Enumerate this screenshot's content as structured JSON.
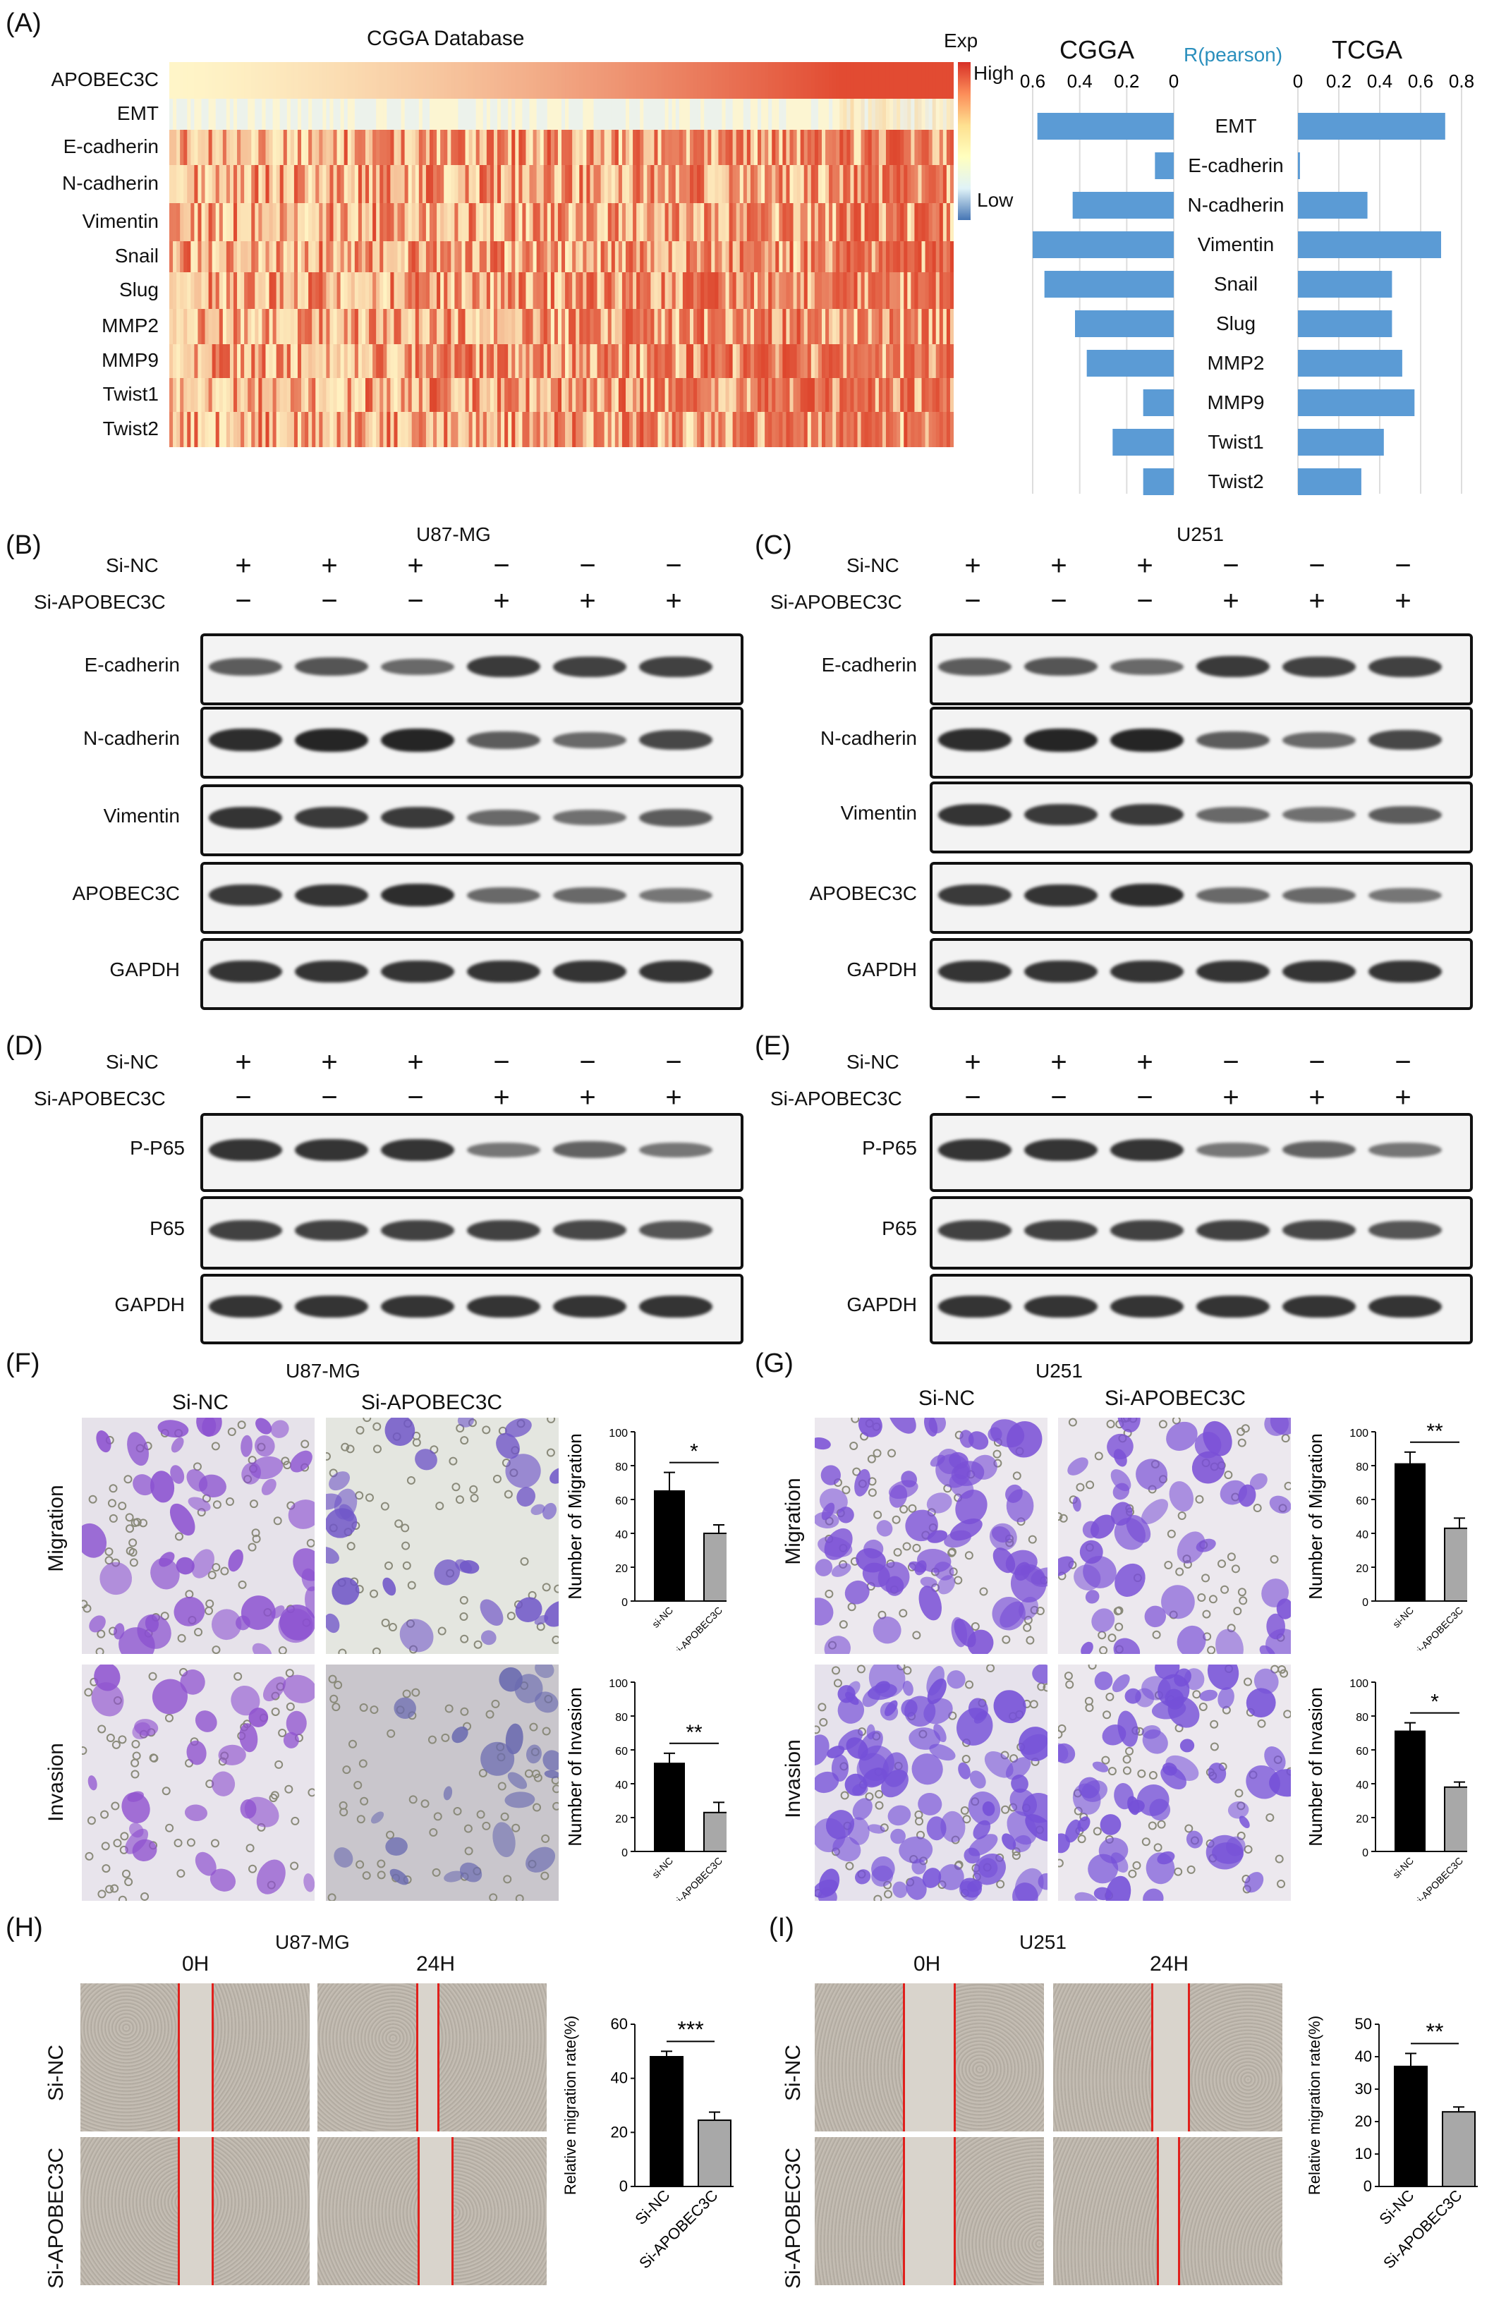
{
  "panels": {
    "A": "(A)",
    "B": "(B)",
    "C": "(C)",
    "D": "(D)",
    "E": "(E)",
    "F": "(F)",
    "G": "(G)",
    "H": "(H)",
    "I": "(I)"
  },
  "heatmap": {
    "title": "CGGA Database",
    "legend_title": "Exp",
    "legend_high": "High",
    "legend_low": "Low",
    "rows": [
      "APOBEC3C",
      "EMT",
      "E-cadherin",
      "N-cadherin",
      "Vimentin",
      "Snail",
      "Slug",
      "MMP2",
      "MMP9",
      "Twist1",
      "Twist2"
    ]
  },
  "correlation": {
    "left_title": "CGGA",
    "mid_title": "R(pearson)",
    "right_title": "TCGA",
    "left_ticks": [
      "0.6",
      "0.4",
      "0.2",
      "0"
    ],
    "right_ticks": [
      "0",
      "0.2",
      "0.4",
      "0.6",
      "0.8"
    ],
    "bar_color": "#5b9bd5"
  },
  "chart_data": [
    {
      "type": "bar",
      "title": "CGGA",
      "xlabel": "R(pearson)",
      "categories": [
        "EMT",
        "E-cadherin",
        "N-cadherin",
        "Vimentin",
        "Snail",
        "Slug",
        "MMP2",
        "MMP9",
        "Twist1",
        "Twist2"
      ],
      "values": [
        0.58,
        0.08,
        0.43,
        0.6,
        0.55,
        0.42,
        0.37,
        0.13,
        0.26,
        0.13
      ],
      "xlim": [
        0,
        0.6
      ]
    },
    {
      "type": "bar",
      "title": "TCGA",
      "xlabel": "R(pearson)",
      "categories": [
        "EMT",
        "E-cadherin",
        "N-cadherin",
        "Vimentin",
        "Snail",
        "Slug",
        "MMP2",
        "MMP9",
        "Twist1",
        "Twist2"
      ],
      "values": [
        0.72,
        0.01,
        0.34,
        0.7,
        0.46,
        0.46,
        0.51,
        0.57,
        0.42,
        0.31
      ],
      "xlim": [
        0,
        0.8
      ]
    },
    {
      "type": "bar",
      "panel": "F",
      "categories": [
        "si-NC",
        "si-APOBEC3C"
      ],
      "values": [
        65,
        40
      ],
      "errors": [
        11,
        5
      ],
      "ylabel": "Number of Migration",
      "ylim": [
        0,
        100
      ],
      "yticks": [
        "0",
        "20",
        "40",
        "60",
        "80",
        "100"
      ],
      "sig": "*"
    },
    {
      "type": "bar",
      "panel": "F",
      "categories": [
        "si-NC",
        "si-APOBEC3C"
      ],
      "values": [
        52,
        23
      ],
      "errors": [
        6,
        6
      ],
      "ylabel": "Number of Invasion",
      "ylim": [
        0,
        100
      ],
      "yticks": [
        "0",
        "20",
        "40",
        "60",
        "80",
        "100"
      ],
      "sig": "**"
    },
    {
      "type": "bar",
      "panel": "G",
      "categories": [
        "si-NC",
        "si-APOBEC3C"
      ],
      "values": [
        81,
        43
      ],
      "errors": [
        7,
        6
      ],
      "ylabel": "Number of Migration",
      "ylim": [
        0,
        100
      ],
      "yticks": [
        "0",
        "20",
        "40",
        "60",
        "80",
        "100"
      ],
      "sig": "**"
    },
    {
      "type": "bar",
      "panel": "G",
      "categories": [
        "si-NC",
        "si-APOBEC3C"
      ],
      "values": [
        71,
        38
      ],
      "errors": [
        5,
        3
      ],
      "ylabel": "Number of Invasion",
      "ylim": [
        0,
        100
      ],
      "yticks": [
        "0",
        "20",
        "40",
        "60",
        "80",
        "100"
      ],
      "sig": "*"
    },
    {
      "type": "bar",
      "panel": "H",
      "categories": [
        "Si-NC",
        "Si-APOBEC3C"
      ],
      "values": [
        48,
        24.5
      ],
      "errors": [
        2,
        3
      ],
      "ylabel": "Relative migration rate(%)",
      "ylim": [
        0,
        60
      ],
      "yticks": [
        "0",
        "20",
        "40",
        "60"
      ],
      "sig": "***"
    },
    {
      "type": "bar",
      "panel": "I",
      "categories": [
        "Si-NC",
        "Si-APOBEC3C"
      ],
      "values": [
        37,
        23
      ],
      "errors": [
        4,
        1.5
      ],
      "ylabel": "Relative migration rate(%)",
      "ylim": [
        0,
        50
      ],
      "yticks": [
        "0",
        "10",
        "20",
        "30",
        "40",
        "50"
      ],
      "sig": "**"
    }
  ],
  "westerns": {
    "siNC": "Si-NC",
    "siA3C": "Si-APOBEC3C",
    "plus": "+",
    "minus": "−",
    "B": {
      "cell": "U87-MG",
      "rows": [
        "E-cadherin",
        "N-cadherin",
        "Vimentin",
        "APOBEC3C",
        "GAPDH"
      ]
    },
    "C": {
      "cell": "U251",
      "rows": [
        "E-cadherin",
        "N-cadherin",
        "Vimentin",
        "APOBEC3C",
        "GAPDH"
      ]
    },
    "D": {
      "rows": [
        "P-P65",
        "P65",
        "GAPDH"
      ]
    },
    "E": {
      "rows": [
        "P-P65",
        "P65",
        "GAPDH"
      ]
    }
  },
  "transwell": {
    "F": {
      "cell": "U87-MG",
      "col1": "Si-NC",
      "col2": "Si-APOBEC3C",
      "row1": "Migration",
      "row2": "Invasion"
    },
    "G": {
      "cell": "U251",
      "col1": "Si-NC",
      "col2": "Si-APOBEC3C",
      "row1": "Migration",
      "row2": "Invasion"
    }
  },
  "scratch": {
    "H": {
      "cell": "U87-MG",
      "t0": "0H",
      "t24": "24H",
      "row1": "Si-NC",
      "row2": "Si-APOBEC3C"
    },
    "I": {
      "cell": "U251",
      "t0": "0H",
      "t24": "24H",
      "row1": "Si-NC",
      "row2": "Si-APOBEC3C"
    }
  }
}
